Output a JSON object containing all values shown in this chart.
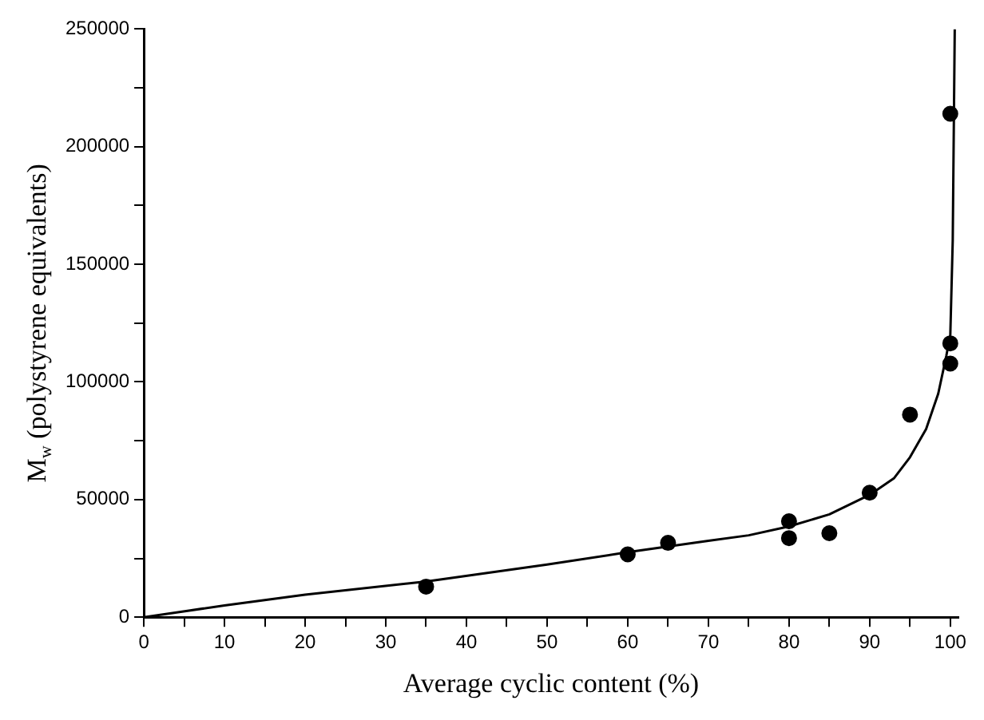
{
  "chart_data": {
    "type": "scatter",
    "xlabel": "Average cyclic content (%)",
    "ylabel": "M$_{w}$ (polystyrene equivalents)",
    "xlim": [
      0,
      101
    ],
    "xticks": [
      0,
      {
        "value": 5,
        "label": null
      },
      10,
      {
        "value": 15,
        "label": null
      },
      20,
      {
        "value": 25,
        "label": null
      },
      30,
      {
        "value": 35,
        "label": null
      },
      40,
      {
        "value": 45,
        "label": null
      },
      50,
      {
        "value": 55,
        "label": null
      },
      60,
      {
        "value": 65,
        "label": null
      },
      70,
      {
        "value": 75,
        "label": null
      },
      80,
      {
        "value": 85,
        "label": null
      },
      90,
      {
        "value": 95,
        "label": null
      },
      100
    ],
    "ylim": [
      0,
      250000
    ],
    "yticks": [
      0,
      {
        "value": 25000,
        "label": null
      },
      50000,
      {
        "value": 75000,
        "label": null
      },
      100000,
      {
        "value": 125000,
        "label": null
      },
      150000,
      {
        "value": 175000,
        "label": null
      },
      200000,
      {
        "value": 225000,
        "label": null
      },
      250000
    ],
    "grid": false,
    "legend": false,
    "series": [
      {
        "type": "scatter",
        "color": "#000000",
        "marker": "circle",
        "x": [
          35,
          60,
          65,
          80,
          80,
          85,
          90,
          95,
          100,
          100,
          100
        ],
        "values": [
          13000,
          26700,
          31600,
          40800,
          33600,
          35700,
          52900,
          86100,
          107800,
          116400,
          214000
        ]
      },
      {
        "type": "line",
        "color": "#000000",
        "marker": "none",
        "line_style": "solid",
        "x": [
          0,
          10,
          20,
          35,
          50,
          60,
          70,
          75,
          80,
          85,
          90,
          93,
          95,
          97,
          98.5,
          99.5,
          100,
          100.3,
          100.55
        ],
        "values": [
          0,
          5000,
          9600,
          15200,
          22400,
          27600,
          32500,
          34800,
          38600,
          43700,
          52000,
          59000,
          68000,
          80000,
          95000,
          111000,
          120000,
          160000,
          250000
        ]
      }
    ]
  }
}
